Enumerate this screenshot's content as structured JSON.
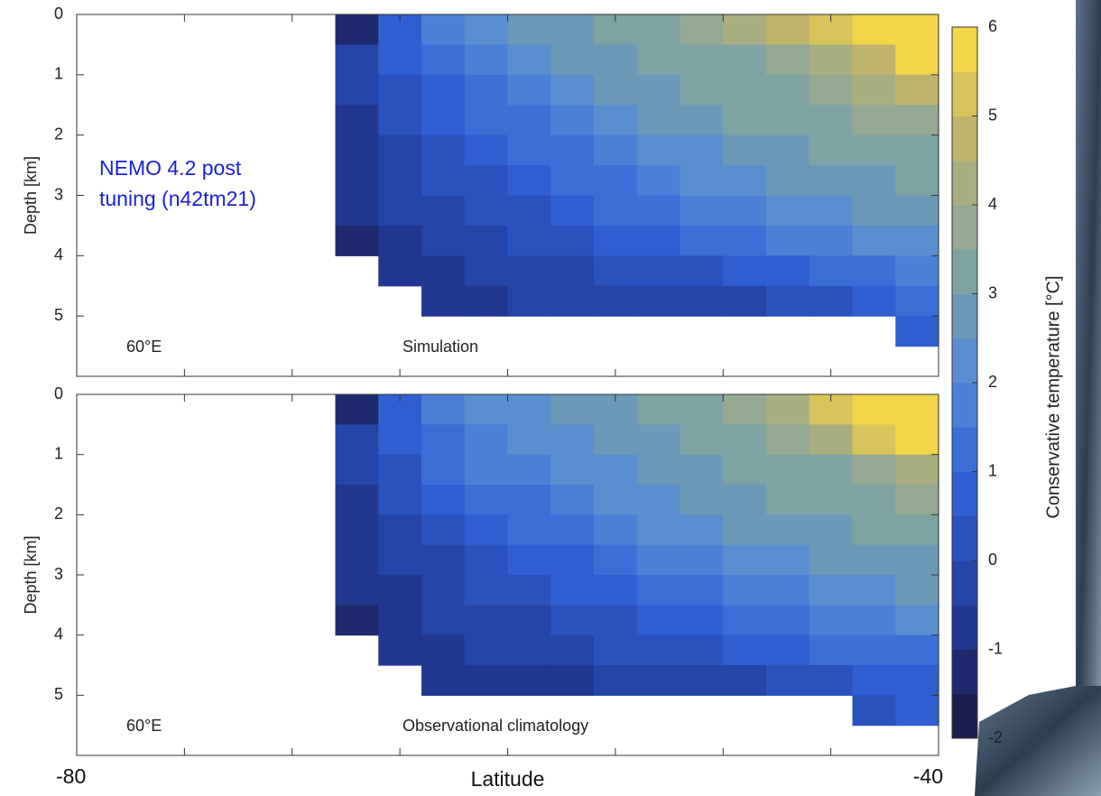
{
  "chart_data": [
    {
      "type": "heatmap",
      "ylabel": "Depth [km]",
      "annotations": [
        "60°E",
        "Simulation"
      ],
      "note_lines": [
        "NEMO 4.2 post",
        "tuning  (n42tm21)"
      ],
      "xlim": [
        -80,
        -40
      ],
      "xticks": [
        -80,
        -75,
        -70,
        -65,
        -60,
        -55,
        -50,
        -45,
        -40
      ],
      "ylim": [
        0,
        6
      ],
      "yticks": [
        0,
        1,
        2,
        3,
        4,
        5
      ],
      "x": [
        -67,
        -65,
        -63,
        -61,
        -59,
        -57,
        -55,
        -53,
        -51,
        -49,
        -47,
        -45,
        -43,
        -41
      ],
      "y": [
        0.25,
        0.75,
        1.25,
        1.75,
        2.25,
        2.75,
        3.25,
        3.75,
        4.25,
        4.75,
        5.25,
        5.75
      ],
      "z": [
        [
          -1.5,
          0.5,
          1.5,
          2.0,
          2.5,
          2.8,
          3.0,
          3.2,
          3.5,
          4.0,
          4.5,
          5.0,
          5.5,
          6.0
        ],
        [
          -0.5,
          0.5,
          1.2,
          1.8,
          2.2,
          2.5,
          2.8,
          3.0,
          3.2,
          3.4,
          3.7,
          4.2,
          4.8,
          5.5
        ],
        [
          -0.5,
          0.2,
          0.8,
          1.3,
          1.8,
          2.2,
          2.5,
          2.8,
          3.0,
          3.2,
          3.4,
          3.6,
          4.0,
          4.5
        ],
        [
          -0.8,
          0,
          0.5,
          1.0,
          1.4,
          1.8,
          2.2,
          2.5,
          2.8,
          3.0,
          3.1,
          3.3,
          3.5,
          3.8
        ],
        [
          -0.8,
          -0.2,
          0.2,
          0.6,
          1.0,
          1.4,
          1.8,
          2.1,
          2.4,
          2.7,
          2.9,
          3.0,
          3.2,
          3.4
        ],
        [
          -1.0,
          -0.4,
          0,
          0.3,
          0.7,
          1.0,
          1.4,
          1.7,
          2.0,
          2.3,
          2.5,
          2.7,
          2.9,
          3.0
        ],
        [
          -1.0,
          -0.5,
          -0.2,
          0.1,
          0.4,
          0.7,
          1.0,
          1.3,
          1.6,
          1.9,
          2.1,
          2.3,
          2.5,
          2.7
        ],
        [
          -1.2,
          -0.7,
          -0.4,
          -0.2,
          0.1,
          0.3,
          0.6,
          0.9,
          1.1,
          1.4,
          1.6,
          1.8,
          2.0,
          2.2
        ],
        [
          null,
          -0.8,
          -0.6,
          -0.4,
          -0.3,
          -0.2,
          0,
          0.2,
          0.4,
          0.6,
          0.9,
          1.1,
          1.3,
          1.5
        ],
        [
          null,
          null,
          -0.8,
          -0.6,
          -0.5,
          -0.5,
          -0.4,
          -0.3,
          -0.2,
          -0.1,
          0.1,
          0.4,
          0.7,
          1.0
        ],
        [
          null,
          null,
          null,
          null,
          null,
          null,
          null,
          null,
          null,
          null,
          null,
          null,
          null,
          0.6
        ],
        [
          null,
          null,
          null,
          null,
          null,
          null,
          null,
          null,
          null,
          null,
          null,
          null,
          null,
          null
        ]
      ]
    },
    {
      "type": "heatmap",
      "ylabel": "Depth [km]",
      "annotations": [
        "60°E",
        "Observational climatology"
      ],
      "xlabel": "Latitude",
      "xlim": [
        -80,
        -40
      ],
      "xticks": [
        -80,
        -75,
        -70,
        -65,
        -60,
        -55,
        -50,
        -45,
        -40
      ],
      "ylim": [
        0,
        6
      ],
      "yticks": [
        0,
        1,
        2,
        3,
        4,
        5
      ],
      "x": [
        -67,
        -65,
        -63,
        -61,
        -59,
        -57,
        -55,
        -53,
        -51,
        -49,
        -47,
        -45,
        -43,
        -41
      ],
      "y": [
        0.25,
        0.75,
        1.25,
        1.75,
        2.25,
        2.75,
        3.25,
        3.75,
        4.25,
        4.75,
        5.25,
        5.75
      ],
      "z": [
        [
          -1.5,
          0.5,
          1.5,
          2.0,
          2.3,
          2.6,
          2.8,
          3.0,
          3.2,
          3.6,
          4.2,
          5.0,
          5.5,
          6.0
        ],
        [
          -0.5,
          0.5,
          1.3,
          1.8,
          2.2,
          2.4,
          2.6,
          2.8,
          3.0,
          3.2,
          3.5,
          4.2,
          5.0,
          5.8
        ],
        [
          -0.5,
          0.3,
          1.0,
          1.5,
          1.9,
          2.2,
          2.4,
          2.6,
          2.8,
          3.0,
          3.2,
          3.4,
          3.8,
          4.3
        ],
        [
          -0.8,
          0,
          0.6,
          1.0,
          1.4,
          1.8,
          2.1,
          2.4,
          2.6,
          2.8,
          3.0,
          3.1,
          3.3,
          3.5
        ],
        [
          -0.8,
          -0.3,
          0.2,
          0.6,
          1.0,
          1.3,
          1.7,
          2.0,
          2.3,
          2.5,
          2.7,
          2.9,
          3.0,
          3.2
        ],
        [
          -1.0,
          -0.5,
          -0.1,
          0.2,
          0.6,
          0.9,
          1.2,
          1.5,
          1.8,
          2.1,
          2.3,
          2.5,
          2.7,
          2.9
        ],
        [
          -1.0,
          -0.6,
          -0.3,
          0,
          0.3,
          0.6,
          0.9,
          1.2,
          1.4,
          1.7,
          1.9,
          2.1,
          2.3,
          2.5
        ],
        [
          -1.2,
          -0.8,
          -0.5,
          -0.3,
          -0.1,
          0.2,
          0.4,
          0.7,
          0.9,
          1.2,
          1.4,
          1.6,
          1.8,
          2.0
        ],
        [
          null,
          -1.0,
          -0.7,
          -0.5,
          -0.4,
          -0.2,
          0,
          0.2,
          0.4,
          0.6,
          0.8,
          1.0,
          1.2,
          1.4
        ],
        [
          null,
          null,
          -1.0,
          -0.8,
          -0.7,
          -0.6,
          -0.5,
          -0.4,
          -0.3,
          -0.1,
          0.1,
          0.3,
          0.6,
          0.9
        ],
        [
          null,
          null,
          null,
          null,
          null,
          null,
          null,
          null,
          null,
          null,
          null,
          null,
          0.3,
          0.6
        ],
        [
          null,
          null,
          null,
          null,
          null,
          null,
          null,
          null,
          null,
          null,
          null,
          null,
          null,
          null
        ]
      ]
    }
  ],
  "colorbar": {
    "label": "Conservative temperature [°C]",
    "levels": [
      -2,
      -1.5,
      -1,
      -0.5,
      0,
      0.5,
      1,
      1.5,
      2,
      2.5,
      3,
      3.5,
      4,
      4.5,
      5,
      5.5,
      6
    ],
    "colors": [
      "#1c1b4d",
      "#1f2a6e",
      "#22378f",
      "#2544a8",
      "#2a52bf",
      "#2f5fd0",
      "#3a6fd8",
      "#4a80d6",
      "#5a8fcf",
      "#6c99b8",
      "#7fa3a3",
      "#93a991",
      "#a9ae80",
      "#c0b46c",
      "#d8c45a",
      "#f2d548"
    ],
    "ticks": [
      -2,
      -1,
      0,
      1,
      2,
      3,
      4,
      5,
      6
    ]
  }
}
